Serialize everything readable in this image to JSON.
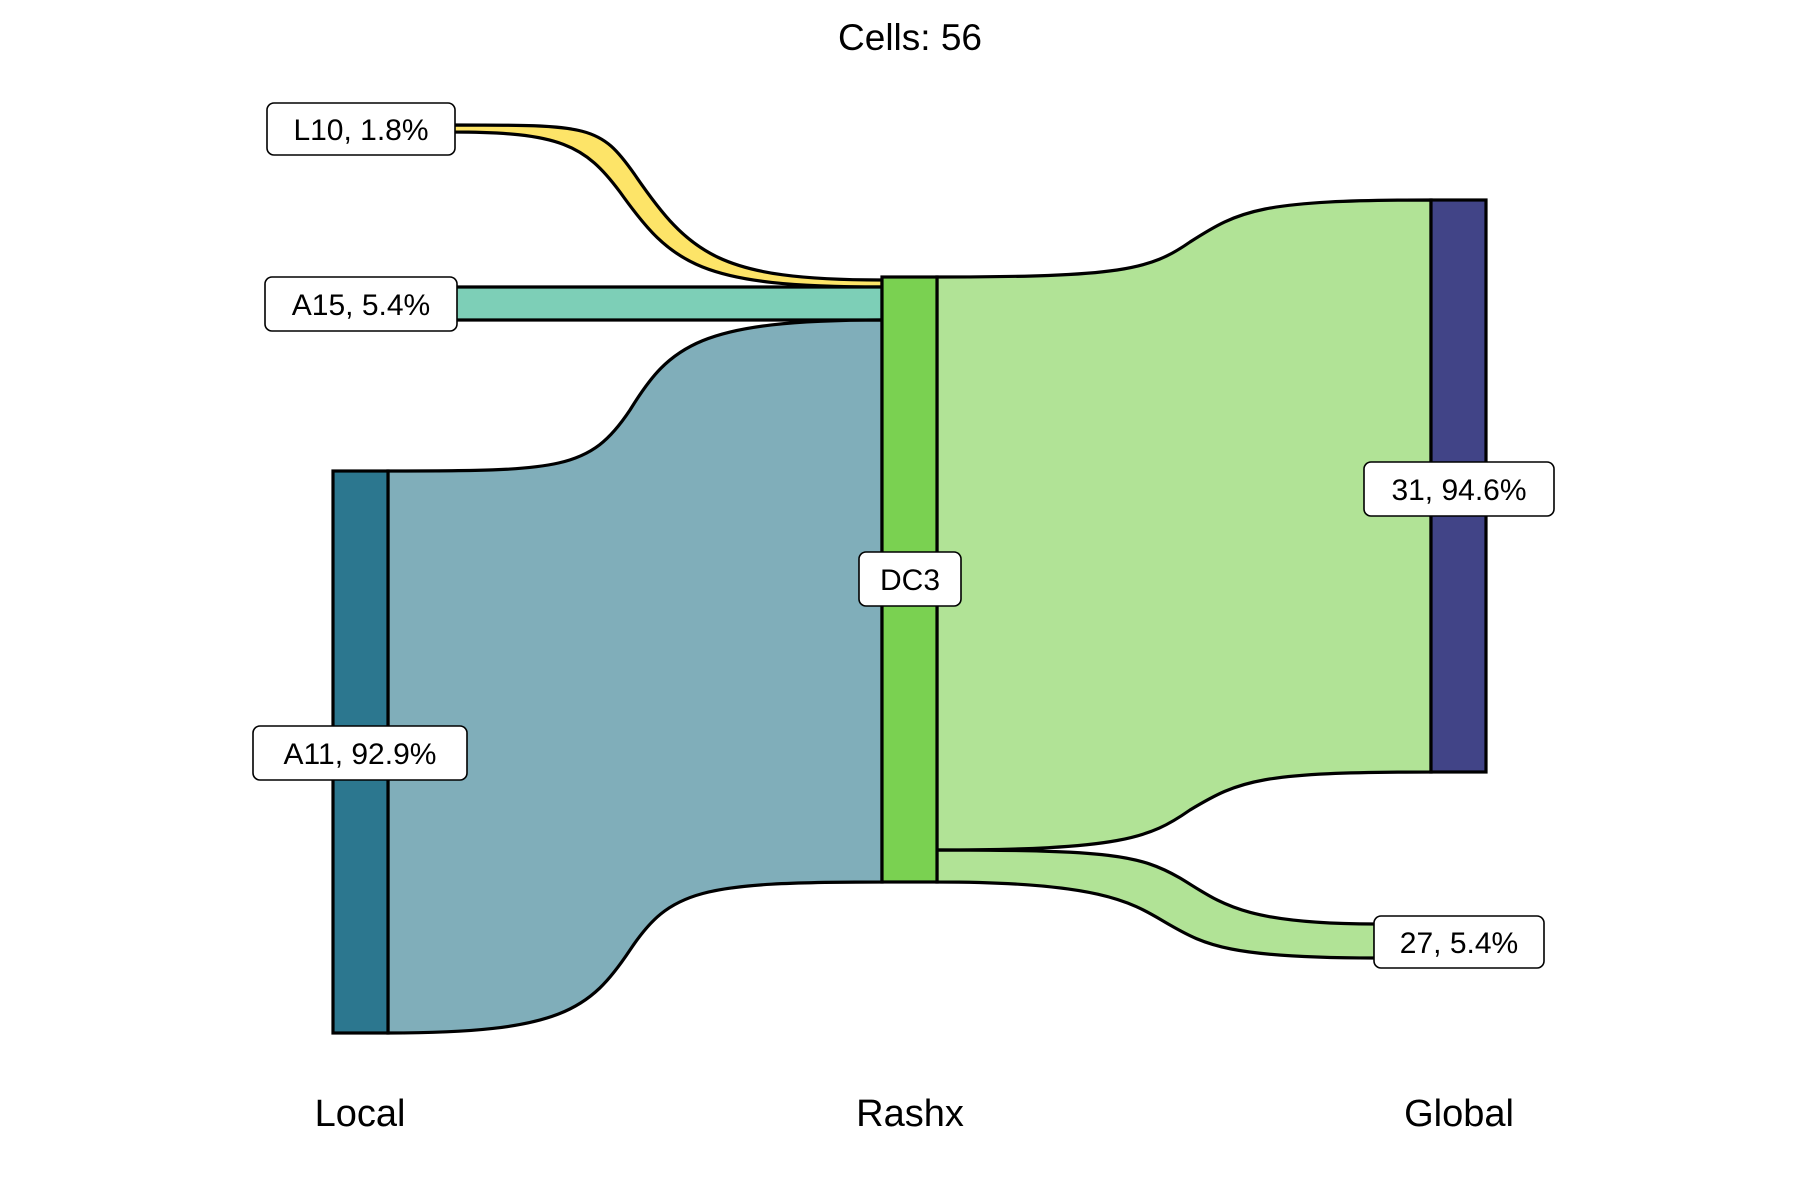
{
  "title": "Cells:  56",
  "axes": [
    "Local",
    "Rashx",
    "Global"
  ],
  "nodes": {
    "L10": {
      "label": "L10, 1.8%",
      "color": "#fde468"
    },
    "A15": {
      "label": "A15, 5.4%",
      "color": "#7dcfb7"
    },
    "A11": {
      "label": "A11, 92.9%",
      "color": "#2c778f"
    },
    "DC3": {
      "label": "DC3",
      "color": "#7ad151"
    },
    "G31": {
      "label": "31, 94.6%",
      "color": "#414487"
    },
    "G27": {
      "label": "27, 5.4%",
      "color": "#b1e396"
    }
  },
  "flows": [
    {
      "from": "L10",
      "to": "DC3",
      "percent": 1.8,
      "color": "#fde468"
    },
    {
      "from": "A15",
      "to": "DC3",
      "percent": 5.4,
      "color": "#7dcfb7"
    },
    {
      "from": "A11",
      "to": "DC3",
      "percent": 92.9,
      "color": "#80aeba"
    },
    {
      "from": "DC3",
      "to": "31",
      "percent": 94.6,
      "color": "#b1e396"
    },
    {
      "from": "DC3",
      "to": "27",
      "percent": 5.4,
      "color": "#b1e396"
    }
  ]
}
